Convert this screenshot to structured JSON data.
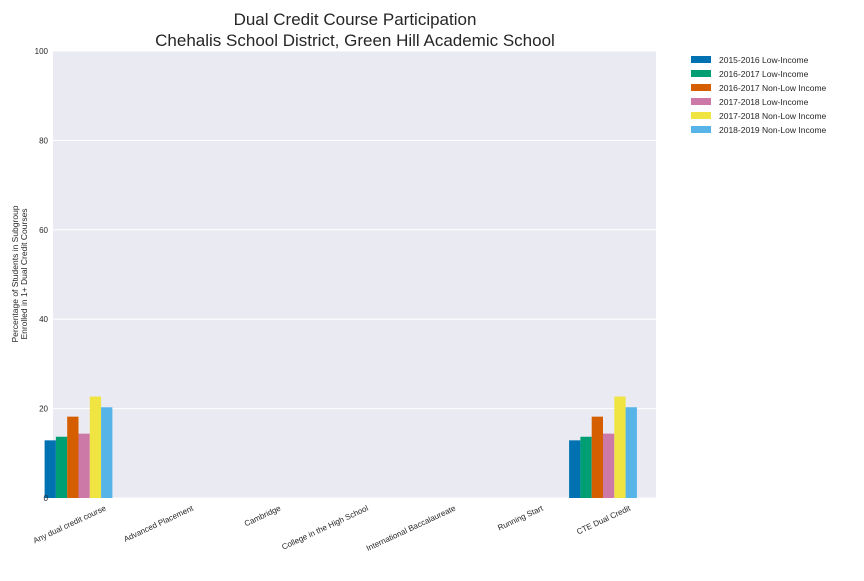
{
  "chart_data": {
    "type": "bar",
    "title": "Dual Credit Course Participation",
    "subtitle": "Chehalis School District, Green Hill Academic School",
    "ylabel_line1": "Percentage of Students in Subgroup",
    "ylabel_line2": "Enrolled in 1+ Dual Credit Courses",
    "xlabel": "",
    "ylim": [
      0,
      100
    ],
    "yticks": [
      0,
      20,
      40,
      60,
      80,
      100
    ],
    "grid": true,
    "legend_position": "outside-top-right",
    "categories": [
      "Any dual credit course",
      "Advanced Placement",
      "Cambridge",
      "College in the High School",
      "International Baccalaureate",
      "Running Start",
      "CTE Dual Credit"
    ],
    "series": [
      {
        "name": "2015-2016 Low-Income",
        "color": "#0072B2",
        "values": [
          12.9,
          0,
          0,
          0,
          0,
          0,
          12.9
        ]
      },
      {
        "name": "2016-2017 Low-Income",
        "color": "#009E73",
        "values": [
          13.7,
          0,
          0,
          0,
          0,
          0,
          13.7
        ]
      },
      {
        "name": "2016-2017 Non-Low Income",
        "color": "#D55E00",
        "values": [
          18.2,
          0,
          0,
          0,
          0,
          0,
          18.2
        ]
      },
      {
        "name": "2017-2018 Low-Income",
        "color": "#CC79A7",
        "values": [
          14.4,
          0,
          0,
          0,
          0,
          0,
          14.4
        ]
      },
      {
        "name": "2017-2018 Non-Low Income",
        "color": "#F0E442",
        "values": [
          22.7,
          0,
          0,
          0,
          0,
          0,
          22.7
        ]
      },
      {
        "name": "2018-2019 Non-Low Income",
        "color": "#56B4E9",
        "values": [
          20.3,
          0,
          0,
          0,
          0,
          0,
          20.3
        ]
      }
    ],
    "colors": {
      "plot_background": "#EAEAF2",
      "grid": "#FFFFFF"
    }
  }
}
